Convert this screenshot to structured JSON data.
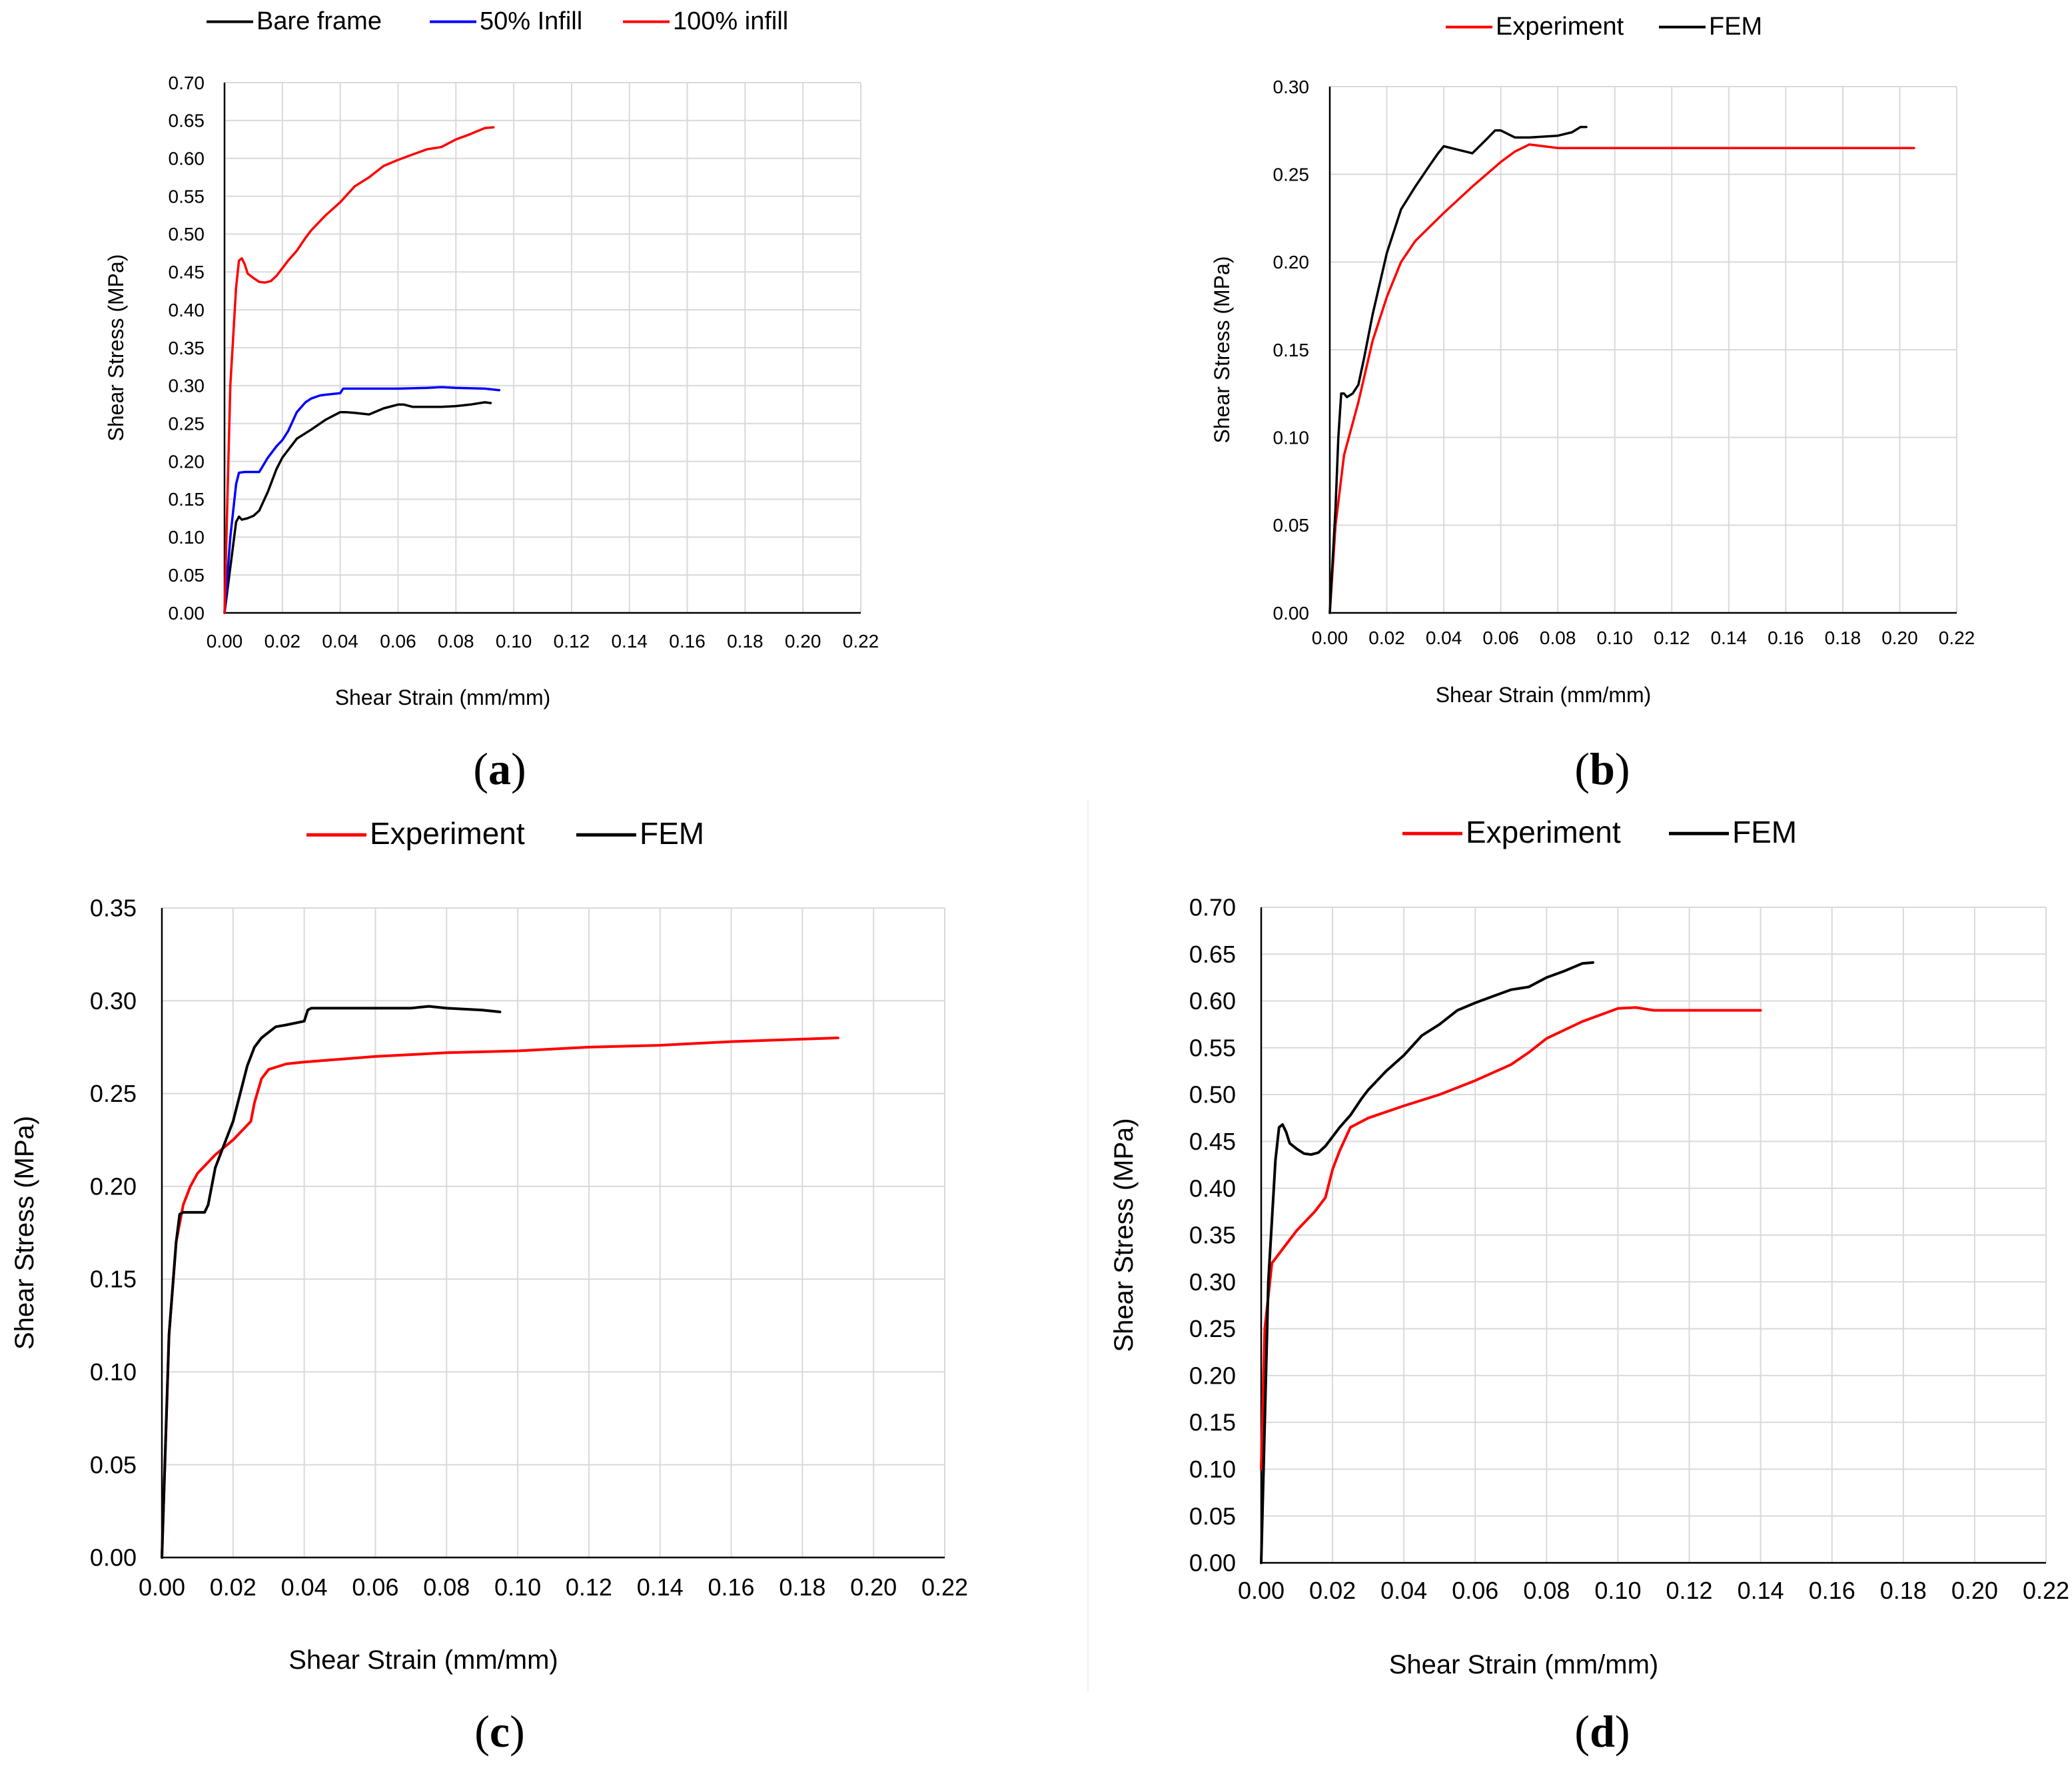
{
  "chart_data": [
    {
      "id": "a",
      "type": "line",
      "caption": "a",
      "xlabel": "Shear Strain (mm/mm)",
      "ylabel": "Shear Stress (MPa)",
      "xlim": [
        0,
        0.22
      ],
      "ylim": [
        0,
        0.7
      ],
      "xticks": [
        "0.00",
        "0.02",
        "0.04",
        "0.06",
        "0.08",
        "0.10",
        "0.12",
        "0.14",
        "0.16",
        "0.18",
        "0.20",
        "0.22"
      ],
      "yticks": [
        "0.00",
        "0.05",
        "0.10",
        "0.15",
        "0.20",
        "0.25",
        "0.30",
        "0.35",
        "0.40",
        "0.45",
        "0.50",
        "0.55",
        "0.60",
        "0.65",
        "0.70"
      ],
      "grid": true,
      "legend_position": "top",
      "series": [
        {
          "name": "Bare frame",
          "color": "#000000",
          "x": [
            0,
            0.002,
            0.004,
            0.005,
            0.006,
            0.008,
            0.01,
            0.012,
            0.015,
            0.018,
            0.02,
            0.025,
            0.03,
            0.035,
            0.04,
            0.042,
            0.045,
            0.05,
            0.055,
            0.06,
            0.062,
            0.065,
            0.07,
            0.075,
            0.08,
            0.085,
            0.09,
            0.092
          ],
          "y": [
            0,
            0.06,
            0.12,
            0.127,
            0.123,
            0.125,
            0.128,
            0.135,
            0.16,
            0.19,
            0.205,
            0.23,
            0.242,
            0.255,
            0.265,
            0.265,
            0.264,
            0.262,
            0.27,
            0.275,
            0.275,
            0.272,
            0.272,
            0.272,
            0.273,
            0.275,
            0.278,
            0.277
          ]
        },
        {
          "name": "50% Infill",
          "color": "#0000ff",
          "x": [
            0,
            0.002,
            0.004,
            0.005,
            0.007,
            0.01,
            0.012,
            0.015,
            0.018,
            0.02,
            0.022,
            0.025,
            0.028,
            0.03,
            0.033,
            0.035,
            0.04,
            0.041,
            0.045,
            0.05,
            0.06,
            0.07,
            0.075,
            0.08,
            0.09,
            0.095
          ],
          "y": [
            0,
            0.1,
            0.17,
            0.185,
            0.186,
            0.186,
            0.186,
            0.205,
            0.22,
            0.228,
            0.24,
            0.265,
            0.278,
            0.283,
            0.287,
            0.288,
            0.29,
            0.296,
            0.296,
            0.296,
            0.296,
            0.297,
            0.298,
            0.297,
            0.296,
            0.294
          ]
        },
        {
          "name": "100% infill",
          "color": "#ff0000",
          "x": [
            0,
            0.002,
            0.004,
            0.005,
            0.006,
            0.007,
            0.008,
            0.01,
            0.012,
            0.014,
            0.016,
            0.018,
            0.02,
            0.022,
            0.025,
            0.028,
            0.03,
            0.035,
            0.04,
            0.045,
            0.05,
            0.055,
            0.06,
            0.065,
            0.07,
            0.075,
            0.08,
            0.085,
            0.09,
            0.093
          ],
          "y": [
            0,
            0.3,
            0.43,
            0.465,
            0.468,
            0.46,
            0.448,
            0.442,
            0.437,
            0.436,
            0.438,
            0.445,
            0.455,
            0.465,
            0.478,
            0.495,
            0.505,
            0.525,
            0.542,
            0.563,
            0.575,
            0.59,
            0.598,
            0.605,
            0.612,
            0.615,
            0.625,
            0.632,
            0.64,
            0.641
          ]
        }
      ]
    },
    {
      "id": "b",
      "type": "line",
      "caption": "b",
      "xlabel": "Shear Strain (mm/mm)",
      "ylabel": "Shear Stress (MPa)",
      "xlim": [
        0,
        0.22
      ],
      "ylim": [
        0,
        0.3
      ],
      "xticks": [
        "0.00",
        "0.02",
        "0.04",
        "0.06",
        "0.08",
        "0.10",
        "0.12",
        "0.14",
        "0.16",
        "0.18",
        "0.20",
        "0.22"
      ],
      "yticks": [
        "0.00",
        "0.05",
        "0.10",
        "0.15",
        "0.20",
        "0.25",
        "0.30"
      ],
      "grid": true,
      "legend_position": "top",
      "series": [
        {
          "name": "Experiment",
          "color": "#ff0000",
          "x": [
            0,
            0.002,
            0.005,
            0.01,
            0.015,
            0.02,
            0.025,
            0.03,
            0.04,
            0.05,
            0.06,
            0.065,
            0.07,
            0.075,
            0.08,
            0.1,
            0.15,
            0.205
          ],
          "y": [
            0,
            0.05,
            0.09,
            0.12,
            0.155,
            0.18,
            0.2,
            0.212,
            0.228,
            0.243,
            0.257,
            0.263,
            0.267,
            0.266,
            0.265,
            0.265,
            0.265,
            0.265
          ]
        },
        {
          "name": "FEM",
          "color": "#000000",
          "x": [
            0,
            0.002,
            0.003,
            0.004,
            0.005,
            0.006,
            0.008,
            0.01,
            0.012,
            0.015,
            0.02,
            0.025,
            0.03,
            0.035,
            0.038,
            0.04,
            0.045,
            0.05,
            0.055,
            0.058,
            0.06,
            0.065,
            0.07,
            0.08,
            0.085,
            0.088,
            0.09
          ],
          "y": [
            0,
            0.06,
            0.1,
            0.125,
            0.125,
            0.123,
            0.125,
            0.13,
            0.145,
            0.17,
            0.205,
            0.23,
            0.243,
            0.255,
            0.262,
            0.266,
            0.264,
            0.262,
            0.27,
            0.275,
            0.275,
            0.271,
            0.271,
            0.272,
            0.274,
            0.277,
            0.277
          ]
        }
      ]
    },
    {
      "id": "c",
      "type": "line",
      "caption": "c",
      "xlabel": "Shear Strain (mm/mm)",
      "ylabel": "Shear  Stress (MPa)",
      "xlim": [
        0,
        0.22
      ],
      "ylim": [
        0,
        0.35
      ],
      "xticks": [
        "0.00",
        "0.02",
        "0.04",
        "0.06",
        "0.08",
        "0.10",
        "0.12",
        "0.14",
        "0.16",
        "0.18",
        "0.20",
        "0.22"
      ],
      "yticks": [
        "0.00",
        "0.05",
        "0.10",
        "0.15",
        "0.20",
        "0.25",
        "0.30",
        "0.35"
      ],
      "grid": true,
      "legend_position": "top",
      "series": [
        {
          "name": "Experiment",
          "color": "#ff0000",
          "x": [
            0,
            0.002,
            0.004,
            0.006,
            0.008,
            0.01,
            0.015,
            0.02,
            0.025,
            0.026,
            0.028,
            0.03,
            0.035,
            0.04,
            0.06,
            0.08,
            0.1,
            0.12,
            0.14,
            0.16,
            0.19
          ],
          "y": [
            0,
            0.12,
            0.17,
            0.19,
            0.2,
            0.207,
            0.217,
            0.225,
            0.235,
            0.245,
            0.258,
            0.263,
            0.266,
            0.267,
            0.27,
            0.272,
            0.273,
            0.275,
            0.276,
            0.278,
            0.28
          ]
        },
        {
          "name": "FEM",
          "color": "#000000",
          "x": [
            0,
            0.002,
            0.004,
            0.005,
            0.006,
            0.008,
            0.01,
            0.012,
            0.013,
            0.015,
            0.018,
            0.02,
            0.022,
            0.024,
            0.026,
            0.028,
            0.03,
            0.032,
            0.035,
            0.04,
            0.041,
            0.042,
            0.045,
            0.05,
            0.06,
            0.07,
            0.075,
            0.08,
            0.09,
            0.095
          ],
          "y": [
            0,
            0.12,
            0.17,
            0.185,
            0.186,
            0.186,
            0.186,
            0.186,
            0.19,
            0.21,
            0.225,
            0.235,
            0.25,
            0.265,
            0.275,
            0.28,
            0.283,
            0.286,
            0.287,
            0.289,
            0.295,
            0.296,
            0.296,
            0.296,
            0.296,
            0.296,
            0.297,
            0.296,
            0.295,
            0.294
          ]
        }
      ]
    },
    {
      "id": "d",
      "type": "line",
      "caption": "d",
      "xlabel": "Shear Strain (mm/mm)",
      "ylabel": "Shear  Stress (MPa)",
      "xlim": [
        0,
        0.22
      ],
      "ylim": [
        0,
        0.7
      ],
      "xticks": [
        "0.00",
        "0.02",
        "0.04",
        "0.06",
        "0.08",
        "0.10",
        "0.12",
        "0.14",
        "0.16",
        "0.18",
        "0.20",
        "0.22"
      ],
      "yticks": [
        "0.00",
        "0.05",
        "0.10",
        "0.15",
        "0.20",
        "0.25",
        "0.30",
        "0.35",
        "0.40",
        "0.45",
        "0.50",
        "0.55",
        "0.60",
        "0.65",
        "0.70"
      ],
      "grid": true,
      "legend_position": "top",
      "series": [
        {
          "name": "Experiment",
          "color": "#ff0000",
          "x": [
            0,
            0.001,
            0.003,
            0.005,
            0.008,
            0.01,
            0.015,
            0.018,
            0.02,
            0.022,
            0.025,
            0.03,
            0.04,
            0.05,
            0.06,
            0.07,
            0.075,
            0.08,
            0.09,
            0.1,
            0.105,
            0.11,
            0.12,
            0.14
          ],
          "y": [
            0.1,
            0.25,
            0.32,
            0.33,
            0.345,
            0.355,
            0.375,
            0.39,
            0.42,
            0.44,
            0.465,
            0.475,
            0.488,
            0.5,
            0.515,
            0.532,
            0.545,
            0.56,
            0.578,
            0.592,
            0.593,
            0.59,
            0.59,
            0.59
          ]
        },
        {
          "name": "FEM",
          "color": "#000000",
          "x": [
            0,
            0.002,
            0.004,
            0.005,
            0.006,
            0.007,
            0.008,
            0.01,
            0.012,
            0.014,
            0.016,
            0.018,
            0.02,
            0.022,
            0.025,
            0.028,
            0.03,
            0.035,
            0.04,
            0.045,
            0.05,
            0.055,
            0.06,
            0.065,
            0.07,
            0.075,
            0.08,
            0.085,
            0.09,
            0.093
          ],
          "y": [
            0,
            0.3,
            0.43,
            0.465,
            0.468,
            0.46,
            0.448,
            0.442,
            0.437,
            0.436,
            0.438,
            0.445,
            0.455,
            0.465,
            0.478,
            0.495,
            0.505,
            0.525,
            0.542,
            0.563,
            0.575,
            0.59,
            0.598,
            0.605,
            0.612,
            0.615,
            0.625,
            0.632,
            0.64,
            0.641
          ]
        }
      ]
    }
  ]
}
